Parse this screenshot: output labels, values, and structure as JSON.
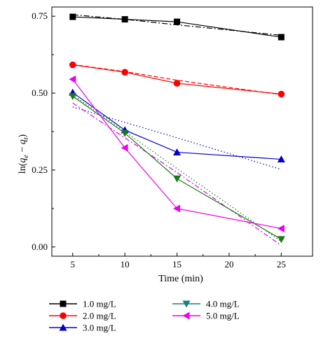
{
  "chart_data": {
    "type": "line",
    "title": "",
    "xlabel": "Time (min)",
    "ylabel_parts": [
      "ln(",
      "q",
      "e",
      " − ",
      "q",
      "t",
      ")"
    ],
    "xlim": [
      3,
      28
    ],
    "ylim": [
      -0.03,
      0.78
    ],
    "xticks": [
      5,
      10,
      15,
      20,
      25
    ],
    "yticks": [
      0.0,
      0.25,
      0.5,
      0.75
    ],
    "ytick_labels": [
      "0.00",
      "0.25",
      "0.50",
      "0.75"
    ],
    "grid": false,
    "legend_placement": "bottom",
    "series": [
      {
        "name": "1.0 mg/L",
        "color": "#000000",
        "marker": "square",
        "x": [
          5,
          10,
          15,
          25
        ],
        "y": [
          0.748,
          0.74,
          0.732,
          0.682
        ],
        "fit": {
          "y": [
            0.755,
            0.74,
            0.722,
            0.688
          ],
          "dash": "8,3,2,3"
        }
      },
      {
        "name": "2.0 mg/L",
        "color": "#ff0000",
        "marker": "circle",
        "x": [
          5,
          10,
          15,
          25
        ],
        "y": [
          0.592,
          0.568,
          0.532,
          0.497
        ],
        "fit": {
          "y": [
            0.593,
            0.57,
            0.542,
            0.495
          ],
          "dash": "6,3"
        }
      },
      {
        "name": "3.0 mg/L",
        "color": "#0000cc",
        "marker": "triangle-up",
        "x": [
          5,
          10,
          15,
          25
        ],
        "y": [
          0.502,
          0.38,
          0.308,
          0.285
        ],
        "fit": {
          "y": [
            0.455,
            0.405,
            0.355,
            0.252
          ],
          "dash": "1.5,3"
        }
      },
      {
        "name": "4.0 mg/L",
        "color": "#1a7a1a",
        "marker": "triangle-down",
        "x": [
          5,
          10,
          15,
          25
        ],
        "y": [
          0.49,
          0.37,
          0.222,
          0.025
        ],
        "fit": {
          "y": [
            0.495,
            0.375,
            0.255,
            0.018
          ],
          "dash": "1.5,3"
        }
      },
      {
        "name": "5.0 mg/L",
        "color": "#ee00ee",
        "marker": "triangle-left",
        "x": [
          5,
          10,
          15,
          25
        ],
        "y": [
          0.545,
          0.322,
          0.125,
          0.06
        ],
        "fit": {
          "y": [
            0.468,
            0.355,
            0.242,
            0.005
          ],
          "dash": "7,3,2,3"
        }
      }
    ],
    "legend_colors": {
      "4.0 mg/L": "#138080"
    }
  }
}
